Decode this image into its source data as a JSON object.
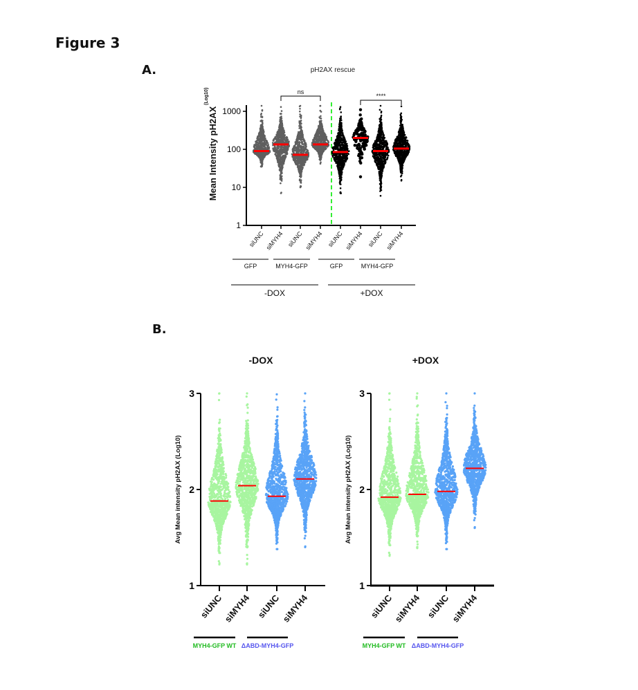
{
  "figure": {
    "title": "Figure 3",
    "panel_a_label": "A.",
    "panel_b_label": "B."
  },
  "chart_data": [
    {
      "type": "scatter",
      "subtype": "dot-plot with median lines",
      "panel": "A",
      "title": "pH2AX rescue",
      "ylabel": "Mean Intensity pH2AX",
      "ylabel_superscript": "(Log10)",
      "yscale": "log10",
      "ylim": [
        1,
        1500
      ],
      "yticks": [
        1,
        10,
        100,
        1000
      ],
      "ytick_labels": [
        "1",
        "10",
        "100",
        "1000"
      ],
      "categories": [
        "siUNC",
        "siMYH4",
        "siUNC",
        "siMYH4",
        "siUNC",
        "siMYH4",
        "siUNC",
        "siMYH4"
      ],
      "groups": [
        {
          "label": "GFP",
          "members": [
            0,
            1
          ]
        },
        {
          "label": "MYH4-GFP",
          "members": [
            2,
            3
          ]
        },
        {
          "label": "GFP",
          "members": [
            4,
            5
          ]
        },
        {
          "label": "MYH4-GFP",
          "members": [
            6,
            7
          ]
        }
      ],
      "supergroups": [
        {
          "label": "-DOX",
          "members": [
            0,
            1,
            2,
            3
          ]
        },
        {
          "label": "+DOX",
          "members": [
            4,
            5,
            6,
            7
          ]
        }
      ],
      "series": [
        {
          "name": "siUNC GFP -DOX",
          "median": 90,
          "min": 35,
          "max": 1400,
          "color": "#5f5f5f",
          "density": "dense"
        },
        {
          "name": "siMYH4 GFP -DOX",
          "median": 135,
          "min": 7,
          "max": 1300,
          "color": "#5f5f5f",
          "density": "dense"
        },
        {
          "name": "siUNC MYH4-GFP -DOX",
          "median": 72,
          "min": 10,
          "max": 1400,
          "color": "#5f5f5f",
          "density": "dense"
        },
        {
          "name": "siMYH4 MYH4-GFP -DOX",
          "median": 135,
          "min": 42,
          "max": 1400,
          "color": "#5f5f5f",
          "density": "dense"
        },
        {
          "name": "siUNC GFP +DOX",
          "median": 85,
          "min": 7,
          "max": 1300,
          "color": "#000000",
          "density": "dense"
        },
        {
          "name": "siMYH4 GFP +DOX",
          "median": 200,
          "min": 19,
          "max": 1100,
          "color": "#000000",
          "density": "sparse"
        },
        {
          "name": "siUNC MYH4-GFP +DOX",
          "median": 90,
          "min": 6,
          "max": 1400,
          "color": "#000000",
          "density": "dense"
        },
        {
          "name": "siMYH4 MYH4-GFP +DOX",
          "median": 105,
          "min": 15,
          "max": 1350,
          "color": "#000000",
          "density": "dense"
        }
      ],
      "median_color": "#ff0000",
      "divider": {
        "style": "dashed",
        "color": "#33ee33",
        "between": [
          3,
          4
        ]
      },
      "annotations": [
        {
          "text": "ns",
          "from": 1,
          "to": 3
        },
        {
          "text": "****",
          "from": 5,
          "to": 7
        }
      ]
    },
    {
      "type": "scatter",
      "subtype": "dot-plot with median lines",
      "panel": "B-left",
      "title": "-DOX",
      "ylabel": "Avg Mean intensity pH2AX (Log10)",
      "ylim": [
        1,
        3
      ],
      "yticks": [
        1,
        2,
        3
      ],
      "ytick_labels": [
        "1",
        "2",
        "3"
      ],
      "categories": [
        "siUNC",
        "siMYH4",
        "siUNC",
        "siMYH4"
      ],
      "groups": [
        {
          "label": "MYH4-GFP WT",
          "members": [
            0,
            1
          ],
          "color": "#22bb22"
        },
        {
          "label": "ΔABD-MYH4-GFP",
          "members": [
            2,
            3
          ],
          "color": "#5555ee"
        }
      ],
      "series": [
        {
          "name": "siUNC MYH4-GFP WT",
          "median": 1.88,
          "min": 1.22,
          "max": 3.0,
          "color": "#a8f5a0"
        },
        {
          "name": "siMYH4 MYH4-GFP WT",
          "median": 2.04,
          "min": 1.22,
          "max": 3.0,
          "color": "#a8f5a0"
        },
        {
          "name": "siUNC ΔABD-MYH4-GFP",
          "median": 1.93,
          "min": 1.38,
          "max": 2.99,
          "color": "#59a3f7"
        },
        {
          "name": "siMYH4 ΔABD-MYH4-GFP",
          "median": 2.11,
          "min": 1.4,
          "max": 3.0,
          "color": "#59a3f7"
        }
      ],
      "median_color": "#ff0000"
    },
    {
      "type": "scatter",
      "subtype": "dot-plot with median lines",
      "panel": "B-right",
      "title": "+DOX",
      "ylabel": "Avg Mean intensity pH2AX (Log10)",
      "ylim": [
        1,
        3
      ],
      "yticks": [
        1,
        2,
        3
      ],
      "ytick_labels": [
        "1",
        "2",
        "3"
      ],
      "categories": [
        "siUNC",
        "siMYH4",
        "siUNC",
        "siMYH4"
      ],
      "groups": [
        {
          "label": "MYH4-GFP WT",
          "members": [
            0,
            1
          ],
          "color": "#22bb22"
        },
        {
          "label": "ΔABD-MYH4-GFP",
          "members": [
            2,
            3
          ],
          "color": "#5555ee"
        }
      ],
      "series": [
        {
          "name": "siUNC MYH4-GFP WT",
          "median": 1.92,
          "min": 1.31,
          "max": 3.0,
          "color": "#a8f5a0"
        },
        {
          "name": "siMYH4 MYH4-GFP WT",
          "median": 1.95,
          "min": 1.39,
          "max": 3.0,
          "color": "#a8f5a0"
        },
        {
          "name": "siUNC ΔABD-MYH4-GFP",
          "median": 1.98,
          "min": 1.38,
          "max": 3.0,
          "color": "#59a3f7"
        },
        {
          "name": "siMYH4 ΔABD-MYH4-GFP",
          "median": 2.22,
          "min": 1.6,
          "max": 3.0,
          "color": "#59a3f7"
        }
      ],
      "median_color": "#ff0000"
    }
  ]
}
